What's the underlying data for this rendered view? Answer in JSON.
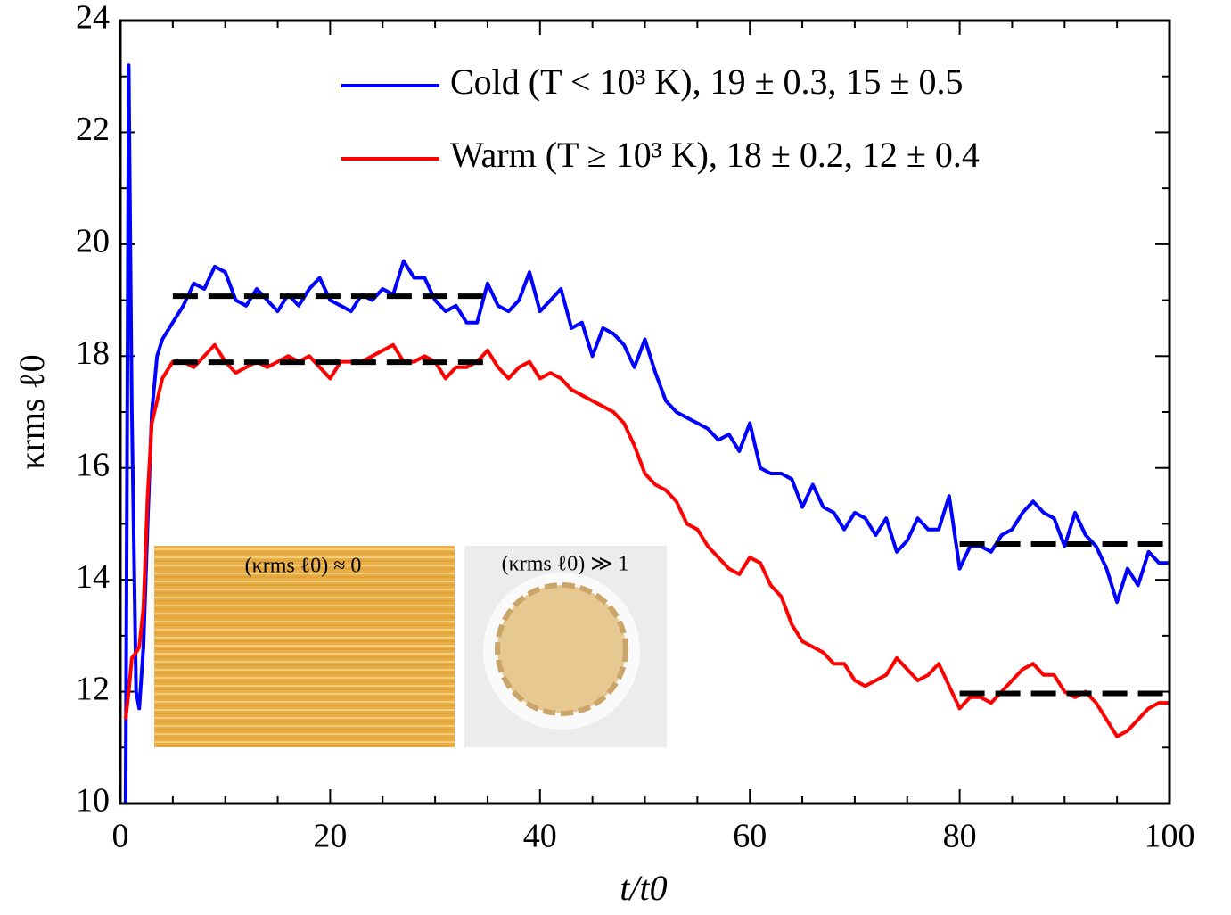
{
  "chart_data": {
    "type": "line",
    "x_label": "t/t0",
    "y_label": "κrms ℓ0",
    "xlim": [
      0,
      100
    ],
    "ylim": [
      10,
      24
    ],
    "xticks": [
      0,
      20,
      40,
      60,
      80,
      100
    ],
    "yticks": [
      10,
      12,
      14,
      16,
      18,
      20,
      22,
      24
    ],
    "xminorticks": [
      5,
      10,
      15,
      25,
      30,
      35,
      45,
      50,
      55,
      65,
      70,
      75,
      85,
      90,
      95
    ],
    "yminorticks": [
      11,
      13,
      15,
      17,
      19,
      21,
      23
    ],
    "x": [
      0.5,
      0.8,
      1.1,
      1.5,
      1.8,
      2.2,
      2.6,
      3,
      3.5,
      4,
      5,
      6,
      7,
      8,
      9,
      10,
      11,
      12,
      13,
      14,
      15,
      16,
      17,
      18,
      19,
      20,
      21,
      22,
      23,
      24,
      25,
      26,
      27,
      28,
      29,
      30,
      31,
      32,
      33,
      34,
      35,
      36,
      37,
      38,
      39,
      40,
      41,
      42,
      43,
      44,
      45,
      46,
      47,
      48,
      49,
      50,
      51,
      52,
      53,
      54,
      55,
      56,
      57,
      58,
      59,
      60,
      61,
      62,
      63,
      64,
      65,
      66,
      67,
      68,
      69,
      70,
      71,
      72,
      73,
      74,
      75,
      76,
      77,
      78,
      79,
      80,
      81,
      82,
      83,
      84,
      85,
      86,
      87,
      88,
      89,
      90,
      91,
      92,
      93,
      94,
      95,
      96,
      97,
      98,
      99,
      100
    ],
    "series": [
      {
        "name": "Cold (T < 10³ K), 19 ± 0.3, 15 ± 0.5",
        "color": "#0000ff",
        "values": [
          10.0,
          23.2,
          17.0,
          12.0,
          11.7,
          12.8,
          15.0,
          17.0,
          18.0,
          18.3,
          18.6,
          18.9,
          19.3,
          19.2,
          19.6,
          19.5,
          19.0,
          18.9,
          19.2,
          19.0,
          18.8,
          19.1,
          18.9,
          19.2,
          19.4,
          19.0,
          18.9,
          18.8,
          19.1,
          19.0,
          19.2,
          19.1,
          19.7,
          19.4,
          19.4,
          19.0,
          18.8,
          18.9,
          18.6,
          18.6,
          19.3,
          18.9,
          18.8,
          19.0,
          19.5,
          18.8,
          19.0,
          19.2,
          18.5,
          18.6,
          18.0,
          18.5,
          18.4,
          18.2,
          17.8,
          18.3,
          17.7,
          17.2,
          17.0,
          16.9,
          16.8,
          16.7,
          16.5,
          16.6,
          16.3,
          16.8,
          16.0,
          15.9,
          15.9,
          15.8,
          15.3,
          15.7,
          15.3,
          15.2,
          14.9,
          15.2,
          15.1,
          14.8,
          15.1,
          14.5,
          14.7,
          15.1,
          14.9,
          14.9,
          15.5,
          14.2,
          14.6,
          14.6,
          14.5,
          14.8,
          14.9,
          15.2,
          15.4,
          15.2,
          15.1,
          14.6,
          15.2,
          14.8,
          14.6,
          14.2,
          13.6,
          14.2,
          13.9,
          14.5,
          14.3,
          14.3
        ]
      },
      {
        "name": "Warm (T ≥ 10³ K), 18 ± 0.2, 12 ± 0.4",
        "color": "#ff0000",
        "values": [
          11.5,
          12.0,
          12.6,
          12.7,
          12.8,
          13.5,
          15.5,
          16.8,
          17.2,
          17.6,
          17.9,
          17.9,
          17.8,
          18.0,
          18.2,
          17.9,
          17.7,
          17.8,
          17.9,
          17.8,
          17.9,
          18.0,
          17.9,
          18.0,
          17.8,
          17.6,
          17.9,
          17.9,
          17.9,
          18.0,
          18.1,
          18.2,
          17.9,
          17.9,
          18.0,
          17.9,
          17.6,
          17.8,
          17.8,
          17.9,
          18.1,
          17.8,
          17.6,
          17.8,
          17.9,
          17.6,
          17.7,
          17.6,
          17.4,
          17.3,
          17.2,
          17.1,
          17.0,
          16.8,
          16.4,
          15.9,
          15.7,
          15.6,
          15.4,
          15.0,
          14.9,
          14.6,
          14.4,
          14.2,
          14.1,
          14.4,
          14.3,
          13.9,
          13.7,
          13.2,
          12.9,
          12.8,
          12.7,
          12.5,
          12.5,
          12.2,
          12.1,
          12.2,
          12.3,
          12.6,
          12.4,
          12.2,
          12.3,
          12.5,
          12.1,
          11.7,
          11.9,
          11.9,
          11.8,
          12.0,
          12.2,
          12.4,
          12.5,
          12.3,
          12.3,
          12.0,
          11.9,
          12.0,
          11.8,
          11.5,
          11.2,
          11.3,
          11.5,
          11.7,
          11.8,
          11.8
        ]
      }
    ],
    "reference_lines": [
      {
        "y": 19.07,
        "xrange": [
          5,
          35
        ],
        "color": "#000000"
      },
      {
        "y": 14.64,
        "xrange": [
          80,
          100
        ],
        "color": "#000000"
      },
      {
        "y": 17.89,
        "xrange": [
          5,
          35
        ],
        "color": "#000000"
      },
      {
        "y": 11.97,
        "xrange": [
          80,
          100
        ],
        "color": "#000000"
      }
    ],
    "annotations": [
      "(κrms ℓ0) ≈ 0",
      "(κrms ℓ0) ≫ 1"
    ]
  }
}
